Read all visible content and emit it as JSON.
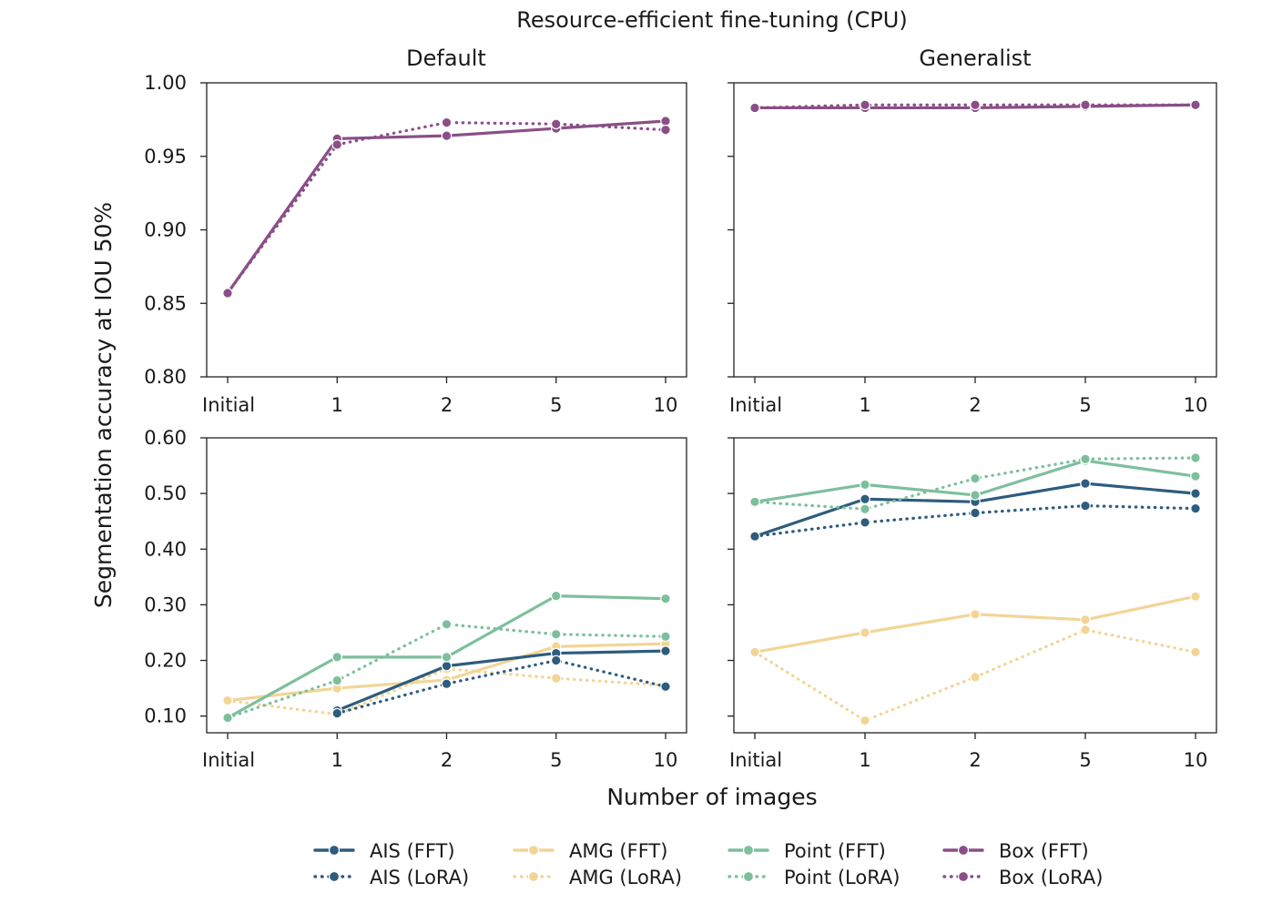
{
  "chart_data": {
    "type": "line",
    "title": "Resource-efficient fine-tuning (CPU)",
    "xlabel": "Number of images",
    "ylabel": "Segmentation accuracy at IOU 50%",
    "categories": [
      "Initial",
      "1",
      "2",
      "5",
      "10"
    ],
    "column_titles": [
      "Default",
      "Generalist"
    ],
    "colors": {
      "AIS": "#2e5c7e",
      "AMG": "#f2d596",
      "Point": "#7dbf9d",
      "Box": "#8a4f86"
    },
    "top_panels": {
      "ylim": [
        0.8,
        1.0
      ],
      "yticks": [
        0.8,
        0.85,
        0.9,
        0.95,
        1.0
      ],
      "ytick_labels": [
        "0.80",
        "0.85",
        "0.90",
        "0.95",
        "1.00"
      ],
      "panels": [
        {
          "name": "Default",
          "series": [
            {
              "name": "Box (FFT)",
              "method": "Box",
              "style": "solid",
              "values": [
                0.857,
                0.962,
                0.964,
                0.969,
                0.974
              ]
            },
            {
              "name": "Box (LoRA)",
              "method": "Box",
              "style": "dotted",
              "values": [
                0.857,
                0.958,
                0.973,
                0.972,
                0.968
              ]
            }
          ]
        },
        {
          "name": "Generalist",
          "series": [
            {
              "name": "Box (FFT)",
              "method": "Box",
              "style": "solid",
              "values": [
                0.983,
                0.983,
                0.983,
                0.984,
                0.985
              ]
            },
            {
              "name": "Box (LoRA)",
              "method": "Box",
              "style": "dotted",
              "values": [
                0.983,
                0.985,
                0.985,
                0.985,
                0.985
              ]
            }
          ]
        }
      ]
    },
    "bottom_panels": {
      "ylim": [
        0.07,
        0.6
      ],
      "yticks": [
        0.1,
        0.2,
        0.3,
        0.4,
        0.5,
        0.6
      ],
      "ytick_labels": [
        "0.10",
        "0.20",
        "0.30",
        "0.40",
        "0.50",
        "0.60"
      ],
      "panels": [
        {
          "name": "Default",
          "series": [
            {
              "name": "AMG (FFT)",
              "method": "AMG",
              "style": "solid",
              "values": [
                0.128,
                0.15,
                0.165,
                0.225,
                0.23
              ]
            },
            {
              "name": "AMG (LoRA)",
              "method": "AMG",
              "style": "dotted",
              "values": [
                0.128,
                0.103,
                0.185,
                0.168,
                0.155
              ]
            },
            {
              "name": "AIS (FFT)",
              "method": "AIS",
              "style": "solid",
              "values": [
                null,
                0.11,
                0.19,
                0.213,
                0.217
              ]
            },
            {
              "name": "AIS (LoRA)",
              "method": "AIS",
              "style": "dotted",
              "values": [
                null,
                0.105,
                0.158,
                0.2,
                0.153
              ]
            },
            {
              "name": "Point (FFT)",
              "method": "Point",
              "style": "solid",
              "values": [
                0.097,
                0.206,
                0.206,
                0.316,
                0.311
              ]
            },
            {
              "name": "Point (LoRA)",
              "method": "Point",
              "style": "dotted",
              "values": [
                0.097,
                0.164,
                0.265,
                0.247,
                0.243
              ]
            }
          ]
        },
        {
          "name": "Generalist",
          "series": [
            {
              "name": "AMG (FFT)",
              "method": "AMG",
              "style": "solid",
              "values": [
                0.215,
                0.25,
                0.283,
                0.273,
                0.315
              ]
            },
            {
              "name": "AMG (LoRA)",
              "method": "AMG",
              "style": "dotted",
              "values": [
                0.215,
                0.092,
                0.17,
                0.255,
                0.215
              ]
            },
            {
              "name": "AIS (FFT)",
              "method": "AIS",
              "style": "solid",
              "values": [
                0.423,
                0.49,
                0.485,
                0.518,
                0.5
              ]
            },
            {
              "name": "AIS (LoRA)",
              "method": "AIS",
              "style": "dotted",
              "values": [
                0.423,
                0.448,
                0.465,
                0.478,
                0.473
              ]
            },
            {
              "name": "Point (FFT)",
              "method": "Point",
              "style": "solid",
              "values": [
                0.485,
                0.516,
                0.497,
                0.559,
                0.531
              ]
            },
            {
              "name": "Point (LoRA)",
              "method": "Point",
              "style": "dotted",
              "values": [
                0.485,
                0.472,
                0.527,
                0.562,
                0.564
              ]
            }
          ]
        }
      ]
    },
    "legend": {
      "placement": "bottom",
      "entries": [
        {
          "label": "AIS (FFT)",
          "method": "AIS",
          "style": "solid"
        },
        {
          "label": "AIS (LoRA)",
          "method": "AIS",
          "style": "dotted"
        },
        {
          "label": "AMG (FFT)",
          "method": "AMG",
          "style": "solid"
        },
        {
          "label": "AMG (LoRA)",
          "method": "AMG",
          "style": "dotted"
        },
        {
          "label": "Point (FFT)",
          "method": "Point",
          "style": "solid"
        },
        {
          "label": "Point (LoRA)",
          "method": "Point",
          "style": "dotted"
        },
        {
          "label": "Box (FFT)",
          "method": "Box",
          "style": "solid"
        },
        {
          "label": "Box (LoRA)",
          "method": "Box",
          "style": "dotted"
        }
      ]
    }
  }
}
